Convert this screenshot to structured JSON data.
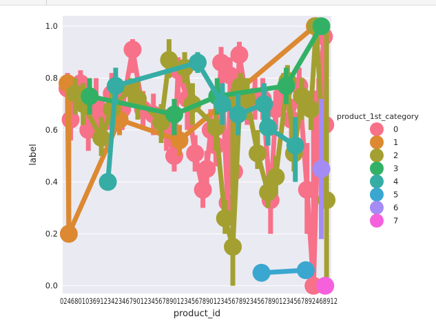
{
  "chart_data": {
    "type": "point",
    "xlabel": "product_id",
    "ylabel": "label",
    "ylim": [
      -0.03,
      1.04
    ],
    "yticks": [
      0.0,
      0.2,
      0.4,
      0.6,
      0.8,
      1.0
    ],
    "ytick_labels": [
      "0.0",
      "0.2",
      "0.4",
      "0.6",
      "0.8",
      "1.0"
    ],
    "x_tick_text": "0246801036912342346790123456789012345678901234567892345678901234567892468912",
    "grid": true,
    "legend": {
      "title": "product_1st_category",
      "placement": "right",
      "entries": [
        {
          "name": "0",
          "color": "#f77189"
        },
        {
          "name": "1",
          "color": "#dc8932"
        },
        {
          "name": "2",
          "color": "#a3a031"
        },
        {
          "name": "3",
          "color": "#32b166"
        },
        {
          "name": "4",
          "color": "#36ada4"
        },
        {
          "name": "5",
          "color": "#39a7d0"
        },
        {
          "name": "6",
          "color": "#a48cf4"
        },
        {
          "name": "7",
          "color": "#f561dd"
        }
      ]
    },
    "series": [
      {
        "color": "#f77189",
        "points": [
          {
            "x": 0.0,
            "y": 0.76,
            "lo": 0.66,
            "hi": 0.82
          },
          {
            "x": 0.012,
            "y": 0.64,
            "lo": 0.56,
            "hi": 0.72
          },
          {
            "x": 0.05,
            "y": 0.78,
            "lo": 0.7,
            "hi": 0.83
          },
          {
            "x": 0.08,
            "y": 0.6,
            "lo": 0.52,
            "hi": 0.68
          },
          {
            "x": 0.11,
            "y": 0.7,
            "lo": 0.62,
            "hi": 0.8
          },
          {
            "x": 0.14,
            "y": 0.63,
            "lo": 0.55,
            "hi": 0.7
          },
          {
            "x": 0.17,
            "y": 0.74,
            "lo": 0.66,
            "hi": 0.82
          },
          {
            "x": 0.21,
            "y": 0.68,
            "lo": 0.6,
            "hi": 0.75
          },
          {
            "x": 0.25,
            "y": 0.91,
            "lo": 0.82,
            "hi": 0.95
          },
          {
            "x": 0.29,
            "y": 0.68,
            "lo": 0.6,
            "hi": 0.75
          },
          {
            "x": 0.33,
            "y": 0.66,
            "lo": 0.58,
            "hi": 0.74
          },
          {
            "x": 0.38,
            "y": 0.6,
            "lo": 0.52,
            "hi": 0.68
          },
          {
            "x": 0.41,
            "y": 0.5,
            "lo": 0.44,
            "hi": 0.58
          },
          {
            "x": 0.425,
            "y": 0.83,
            "lo": 0.74,
            "hi": 0.88
          },
          {
            "x": 0.46,
            "y": 0.72,
            "lo": 0.6,
            "hi": 0.82
          },
          {
            "x": 0.49,
            "y": 0.51,
            "lo": 0.44,
            "hi": 0.58
          },
          {
            "x": 0.52,
            "y": 0.37,
            "lo": 0.3,
            "hi": 0.45
          },
          {
            "x": 0.535,
            "y": 0.45,
            "lo": 0.38,
            "hi": 0.52
          },
          {
            "x": 0.55,
            "y": 0.6,
            "lo": 0.52,
            "hi": 0.68
          },
          {
            "x": 0.57,
            "y": 0.54,
            "lo": 0.46,
            "hi": 0.62
          },
          {
            "x": 0.59,
            "y": 0.86,
            "lo": 0.78,
            "hi": 0.92
          },
          {
            "x": 0.615,
            "y": 0.32,
            "lo": 0.24,
            "hi": 0.4
          },
          {
            "x": 0.625,
            "y": 0.81,
            "lo": 0.72,
            "hi": 0.88
          },
          {
            "x": 0.64,
            "y": 0.44,
            "lo": 0.36,
            "hi": 0.52
          },
          {
            "x": 0.66,
            "y": 0.89,
            "lo": 0.8,
            "hi": 0.94
          },
          {
            "x": 0.69,
            "y": 0.7,
            "lo": 0.62,
            "hi": 0.78
          },
          {
            "x": 0.72,
            "y": 0.73,
            "lo": 0.64,
            "hi": 0.8
          },
          {
            "x": 0.75,
            "y": 0.72,
            "lo": 0.64,
            "hi": 0.8
          },
          {
            "x": 0.78,
            "y": 0.33,
            "lo": 0.2,
            "hi": 0.45
          },
          {
            "x": 0.8,
            "y": 0.68,
            "lo": 0.6,
            "hi": 0.75
          },
          {
            "x": 0.83,
            "y": 0.75,
            "lo": 0.66,
            "hi": 0.82
          },
          {
            "x": 0.86,
            "y": 0.64,
            "lo": 0.56,
            "hi": 0.72
          },
          {
            "x": 0.89,
            "y": 0.77,
            "lo": 0.68,
            "hi": 0.84
          },
          {
            "x": 0.92,
            "y": 0.37,
            "lo": 0.2,
            "hi": 0.55
          },
          {
            "x": 0.945,
            "y": 0.0,
            "lo": 0.0,
            "hi": 0.7
          },
          {
            "x": 0.965,
            "y": 0.72,
            "lo": 0.6,
            "hi": 0.8
          },
          {
            "x": 0.985,
            "y": 0.96,
            "lo": 0.9,
            "hi": 1.0
          },
          {
            "x": 0.99,
            "y": 0.62,
            "lo": 0.4,
            "hi": 0.78
          }
        ]
      },
      {
        "color": "#dc8932",
        "points": [
          {
            "x": 0.0,
            "y": 0.78,
            "lo": 0.7,
            "hi": 0.8
          },
          {
            "x": 0.005,
            "y": 0.2,
            "lo": 0.2,
            "hi": 0.78
          },
          {
            "x": 0.2,
            "y": 0.64,
            "lo": 0.58,
            "hi": 0.7
          },
          {
            "x": 0.43,
            "y": 0.56,
            "lo": 0.5,
            "hi": 0.62
          },
          {
            "x": 0.95,
            "y": 1.0,
            "lo": 0.95,
            "hi": 1.0
          }
        ]
      },
      {
        "color": "#a3a031",
        "points": [
          {
            "x": 0.03,
            "y": 0.74,
            "lo": 0.66,
            "hi": 0.8
          },
          {
            "x": 0.06,
            "y": 0.7,
            "lo": 0.62,
            "hi": 0.78
          },
          {
            "x": 0.13,
            "y": 0.57,
            "lo": 0.5,
            "hi": 0.65
          },
          {
            "x": 0.17,
            "y": 0.68,
            "lo": 0.6,
            "hi": 0.75
          },
          {
            "x": 0.24,
            "y": 0.76,
            "lo": 0.7,
            "hi": 0.8
          },
          {
            "x": 0.27,
            "y": 0.72,
            "lo": 0.64,
            "hi": 0.8
          },
          {
            "x": 0.36,
            "y": 0.63,
            "lo": 0.55,
            "hi": 0.7
          },
          {
            "x": 0.39,
            "y": 0.87,
            "lo": 0.8,
            "hi": 0.95
          },
          {
            "x": 0.45,
            "y": 0.84,
            "lo": 0.78,
            "hi": 0.9
          },
          {
            "x": 0.48,
            "y": 0.7,
            "lo": 0.62,
            "hi": 0.78
          },
          {
            "x": 0.57,
            "y": 0.61,
            "lo": 0.52,
            "hi": 0.7
          },
          {
            "x": 0.605,
            "y": 0.26,
            "lo": 0.2,
            "hi": 0.33
          },
          {
            "x": 0.635,
            "y": 0.15,
            "lo": 0.0,
            "hi": 0.76
          },
          {
            "x": 0.665,
            "y": 0.77,
            "lo": 0.7,
            "hi": 0.82
          },
          {
            "x": 0.69,
            "y": 0.72,
            "lo": 0.64,
            "hi": 0.8
          },
          {
            "x": 0.73,
            "y": 0.51,
            "lo": 0.45,
            "hi": 0.6
          },
          {
            "x": 0.77,
            "y": 0.36,
            "lo": 0.3,
            "hi": 0.42
          },
          {
            "x": 0.8,
            "y": 0.42,
            "lo": 0.35,
            "hi": 0.5
          },
          {
            "x": 0.845,
            "y": 0.79,
            "lo": 0.7,
            "hi": 0.85
          },
          {
            "x": 0.87,
            "y": 0.51,
            "lo": 0.44,
            "hi": 0.58
          },
          {
            "x": 0.9,
            "y": 0.73,
            "lo": 0.64,
            "hi": 0.8
          },
          {
            "x": 0.935,
            "y": 0.68,
            "lo": 0.6,
            "hi": 0.75
          },
          {
            "x": 0.955,
            "y": 1.0,
            "lo": 0.98,
            "hi": 1.0
          },
          {
            "x": 0.995,
            "y": 0.33,
            "lo": 0.0,
            "hi": 1.0
          }
        ]
      },
      {
        "color": "#32b166",
        "points": [
          {
            "x": 0.085,
            "y": 0.73,
            "lo": 0.66,
            "hi": 0.8
          },
          {
            "x": 0.41,
            "y": 0.66,
            "lo": 0.58,
            "hi": 0.72
          },
          {
            "x": 0.575,
            "y": 0.73,
            "lo": 0.66,
            "hi": 0.8
          },
          {
            "x": 0.84,
            "y": 0.77,
            "lo": 0.7,
            "hi": 0.84
          },
          {
            "x": 0.975,
            "y": 1.0,
            "lo": 0.98,
            "hi": 1.0
          }
        ]
      },
      {
        "color": "#36ada4",
        "points": [
          {
            "x": 0.155,
            "y": 0.4,
            "lo": 0.38,
            "hi": 0.42
          },
          {
            "x": 0.185,
            "y": 0.77,
            "lo": 0.7,
            "hi": 0.84
          },
          {
            "x": 0.5,
            "y": 0.86,
            "lo": 0.82,
            "hi": 0.9
          },
          {
            "x": 0.595,
            "y": 0.7,
            "lo": 0.62,
            "hi": 0.78
          },
          {
            "x": 0.655,
            "y": 0.66,
            "lo": 0.58,
            "hi": 0.74
          },
          {
            "x": 0.755,
            "y": 0.7,
            "lo": 0.62,
            "hi": 0.78
          },
          {
            "x": 0.77,
            "y": 0.61,
            "lo": 0.54,
            "hi": 0.68
          },
          {
            "x": 0.875,
            "y": 0.54,
            "lo": 0.4,
            "hi": 0.65
          }
        ]
      },
      {
        "color": "#39a7d0",
        "points": [
          {
            "x": 0.745,
            "y": 0.05,
            "lo": 0.05,
            "hi": 0.05
          },
          {
            "x": 0.915,
            "y": 0.06,
            "lo": 0.06,
            "hi": 0.06
          }
        ]
      },
      {
        "color": "#a48cf4",
        "points": [
          {
            "x": 0.975,
            "y": 0.45,
            "lo": 0.18,
            "hi": 0.72
          }
        ]
      },
      {
        "color": "#f561dd",
        "points": [
          {
            "x": 0.99,
            "y": 0.0,
            "lo": 0.0,
            "hi": 0.0
          }
        ]
      }
    ]
  }
}
